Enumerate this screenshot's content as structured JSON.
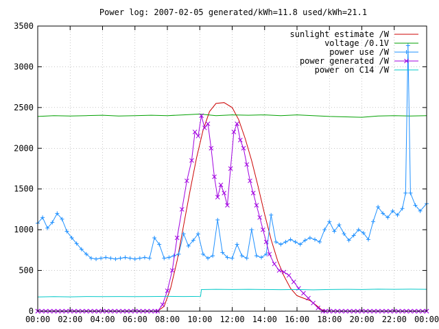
{
  "chart_data": {
    "type": "line",
    "title": "Power log: 2007-02-05 generated/kWh=11.8 used/kWh=21.1",
    "xlabel": "",
    "ylabel": "",
    "x_ticks": [
      "00:00",
      "02:00",
      "04:00",
      "06:00",
      "08:00",
      "10:00",
      "12:00",
      "14:00",
      "16:00",
      "18:00",
      "20:00",
      "22:00",
      "00:00"
    ],
    "xlim_hours": [
      0,
      24
    ],
    "ylim": [
      0,
      3500
    ],
    "y_ticks": [
      0,
      500,
      1000,
      1500,
      2000,
      2500,
      3000,
      3500
    ],
    "grid": true,
    "legend_position": "top-right",
    "series": [
      {
        "name": "sunlight estimate /W",
        "color": "#cc0000",
        "marker": "none",
        "points": [
          [
            0,
            0
          ],
          [
            7.4,
            0
          ],
          [
            7.8,
            60
          ],
          [
            8.2,
            280
          ],
          [
            8.6,
            620
          ],
          [
            9.0,
            1050
          ],
          [
            9.4,
            1480
          ],
          [
            9.8,
            1880
          ],
          [
            10.2,
            2220
          ],
          [
            10.6,
            2450
          ],
          [
            11.0,
            2550
          ],
          [
            11.5,
            2560
          ],
          [
            12.0,
            2500
          ],
          [
            12.4,
            2350
          ],
          [
            12.8,
            2120
          ],
          [
            13.2,
            1850
          ],
          [
            13.6,
            1530
          ],
          [
            14.0,
            1190
          ],
          [
            14.4,
            880
          ],
          [
            14.8,
            620
          ],
          [
            15.2,
            430
          ],
          [
            15.6,
            280
          ],
          [
            16.0,
            190
          ],
          [
            16.4,
            160
          ],
          [
            16.8,
            130
          ],
          [
            17.2,
            70
          ],
          [
            17.5,
            20
          ],
          [
            17.8,
            0
          ],
          [
            24,
            0
          ]
        ]
      },
      {
        "name": "voltage /0.1V",
        "color": "#00a000",
        "marker": "none",
        "points": [
          [
            0,
            2390
          ],
          [
            1,
            2400
          ],
          [
            2,
            2395
          ],
          [
            3,
            2400
          ],
          [
            4,
            2405
          ],
          [
            5,
            2395
          ],
          [
            6,
            2400
          ],
          [
            7,
            2405
          ],
          [
            8,
            2400
          ],
          [
            9,
            2410
          ],
          [
            10,
            2420
          ],
          [
            11,
            2400
          ],
          [
            12,
            2410
          ],
          [
            13,
            2405
          ],
          [
            14,
            2410
          ],
          [
            15,
            2400
          ],
          [
            16,
            2410
          ],
          [
            17,
            2400
          ],
          [
            18,
            2390
          ],
          [
            19,
            2385
          ],
          [
            20,
            2380
          ],
          [
            21,
            2395
          ],
          [
            22,
            2400
          ],
          [
            23,
            2395
          ],
          [
            24,
            2400
          ]
        ]
      },
      {
        "name": "power use /W",
        "color": "#1e90ff",
        "marker": "plus",
        "points": [
          [
            0,
            1080
          ],
          [
            0.3,
            1150
          ],
          [
            0.6,
            1020
          ],
          [
            0.9,
            1090
          ],
          [
            1.2,
            1200
          ],
          [
            1.5,
            1130
          ],
          [
            1.8,
            980
          ],
          [
            2.1,
            900
          ],
          [
            2.4,
            830
          ],
          [
            2.7,
            760
          ],
          [
            3.0,
            700
          ],
          [
            3.3,
            650
          ],
          [
            3.6,
            640
          ],
          [
            3.9,
            650
          ],
          [
            4.2,
            660
          ],
          [
            4.5,
            650
          ],
          [
            4.8,
            640
          ],
          [
            5.1,
            650
          ],
          [
            5.4,
            660
          ],
          [
            5.7,
            650
          ],
          [
            6.0,
            640
          ],
          [
            6.3,
            650
          ],
          [
            6.6,
            660
          ],
          [
            6.9,
            650
          ],
          [
            7.2,
            900
          ],
          [
            7.5,
            820
          ],
          [
            7.8,
            650
          ],
          [
            8.1,
            660
          ],
          [
            8.4,
            680
          ],
          [
            8.7,
            700
          ],
          [
            9.0,
            950
          ],
          [
            9.3,
            800
          ],
          [
            9.6,
            870
          ],
          [
            9.9,
            950
          ],
          [
            10.2,
            700
          ],
          [
            10.5,
            650
          ],
          [
            10.8,
            680
          ],
          [
            11.1,
            1120
          ],
          [
            11.4,
            720
          ],
          [
            11.7,
            660
          ],
          [
            12.0,
            650
          ],
          [
            12.3,
            820
          ],
          [
            12.6,
            680
          ],
          [
            12.9,
            650
          ],
          [
            13.2,
            1000
          ],
          [
            13.5,
            680
          ],
          [
            13.8,
            660
          ],
          [
            14.1,
            700
          ],
          [
            14.4,
            1180
          ],
          [
            14.7,
            850
          ],
          [
            15.0,
            820
          ],
          [
            15.3,
            850
          ],
          [
            15.6,
            880
          ],
          [
            15.9,
            850
          ],
          [
            16.2,
            820
          ],
          [
            16.5,
            870
          ],
          [
            16.8,
            900
          ],
          [
            17.1,
            880
          ],
          [
            17.4,
            850
          ],
          [
            17.7,
            1000
          ],
          [
            18.0,
            1100
          ],
          [
            18.3,
            980
          ],
          [
            18.6,
            1060
          ],
          [
            18.9,
            950
          ],
          [
            19.2,
            870
          ],
          [
            19.5,
            930
          ],
          [
            19.8,
            1000
          ],
          [
            20.1,
            960
          ],
          [
            20.4,
            880
          ],
          [
            20.7,
            1100
          ],
          [
            21.0,
            1280
          ],
          [
            21.3,
            1200
          ],
          [
            21.6,
            1150
          ],
          [
            21.9,
            1230
          ],
          [
            22.2,
            1180
          ],
          [
            22.5,
            1260
          ],
          [
            22.7,
            1450
          ],
          [
            22.85,
            3260
          ],
          [
            23.0,
            1450
          ],
          [
            23.3,
            1300
          ],
          [
            23.6,
            1230
          ],
          [
            24.0,
            1320
          ]
        ]
      },
      {
        "name": "power generated /W",
        "color": "#a000e0",
        "marker": "cross",
        "points": [
          [
            0,
            0
          ],
          [
            7.4,
            0
          ],
          [
            7.7,
            80
          ],
          [
            8.0,
            250
          ],
          [
            8.3,
            500
          ],
          [
            8.6,
            900
          ],
          [
            8.9,
            1250
          ],
          [
            9.2,
            1600
          ],
          [
            9.5,
            1850
          ],
          [
            9.7,
            2200
          ],
          [
            9.9,
            2150
          ],
          [
            10.1,
            2400
          ],
          [
            10.3,
            2250
          ],
          [
            10.5,
            2300
          ],
          [
            10.7,
            2000
          ],
          [
            10.9,
            1650
          ],
          [
            11.1,
            1400
          ],
          [
            11.3,
            1550
          ],
          [
            11.5,
            1450
          ],
          [
            11.7,
            1300
          ],
          [
            11.9,
            1750
          ],
          [
            12.1,
            2200
          ],
          [
            12.3,
            2300
          ],
          [
            12.5,
            2100
          ],
          [
            12.7,
            2000
          ],
          [
            12.9,
            1800
          ],
          [
            13.1,
            1600
          ],
          [
            13.3,
            1450
          ],
          [
            13.5,
            1300
          ],
          [
            13.7,
            1150
          ],
          [
            13.9,
            1000
          ],
          [
            14.1,
            850
          ],
          [
            14.3,
            700
          ],
          [
            14.6,
            580
          ],
          [
            14.9,
            500
          ],
          [
            15.2,
            480
          ],
          [
            15.5,
            440
          ],
          [
            15.8,
            360
          ],
          [
            16.1,
            280
          ],
          [
            16.4,
            220
          ],
          [
            16.7,
            160
          ],
          [
            17.0,
            100
          ],
          [
            17.3,
            40
          ],
          [
            17.6,
            0
          ],
          [
            24,
            0
          ]
        ]
      },
      {
        "name": "power on C14 /W",
        "color": "#00c8c8",
        "marker": "none",
        "points": [
          [
            0,
            175
          ],
          [
            1,
            178
          ],
          [
            2,
            176
          ],
          [
            3,
            180
          ],
          [
            4,
            178
          ],
          [
            5,
            180
          ],
          [
            6,
            178
          ],
          [
            7,
            180
          ],
          [
            8,
            182
          ],
          [
            9,
            180
          ],
          [
            10.05,
            182
          ],
          [
            10.1,
            265
          ],
          [
            11,
            268
          ],
          [
            12,
            266
          ],
          [
            13,
            268
          ],
          [
            14,
            266
          ],
          [
            15,
            264
          ],
          [
            16,
            266
          ],
          [
            17,
            262
          ],
          [
            18,
            266
          ],
          [
            19,
            268
          ],
          [
            20,
            266
          ],
          [
            21,
            270
          ],
          [
            22,
            268
          ],
          [
            23,
            270
          ],
          [
            24,
            268
          ]
        ]
      }
    ]
  }
}
